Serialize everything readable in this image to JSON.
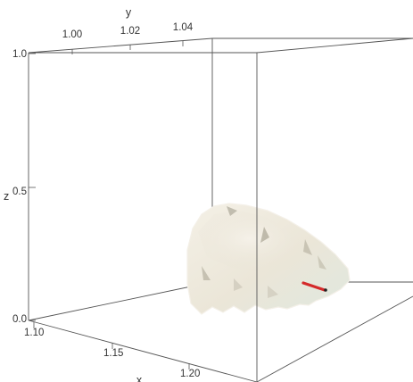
{
  "chart_data": {
    "type": "3d-surface",
    "axes": {
      "x": {
        "label": "x",
        "ticks": [
          "1.10",
          "1.15",
          "1.20"
        ],
        "range": [
          1.09,
          1.235
        ]
      },
      "y": {
        "label": "y",
        "ticks": [
          "1.00",
          "1.02",
          "1.04"
        ],
        "range": [
          0.985,
          1.065
        ]
      },
      "z": {
        "label": "z",
        "ticks": [
          "0.0",
          "0.5",
          "1.0"
        ],
        "range": [
          0.0,
          1.0
        ]
      }
    },
    "box": true,
    "grid": false,
    "surface": {
      "description_color": "#ece7da",
      "shadow_color": "#c9c3b3",
      "edge_color": "#f3efe6"
    },
    "curve": {
      "color": "#d42a2a",
      "point_color": "#222222"
    }
  }
}
